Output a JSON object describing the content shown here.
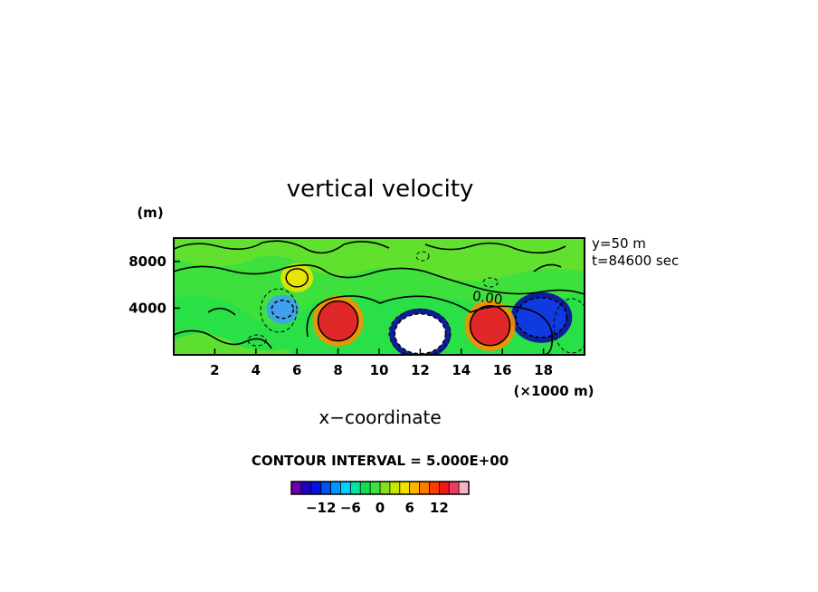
{
  "chart_data": {
    "type": "heatmap",
    "title": "vertical velocity",
    "xlabel": "x−coordinate",
    "x_unit_label": "(×1000 m)",
    "y_unit_label": "(m)",
    "x_ticks": [
      {
        "value": 2,
        "label": "2"
      },
      {
        "value": 4,
        "label": "4"
      },
      {
        "value": 6,
        "label": "6"
      },
      {
        "value": 8,
        "label": "8"
      },
      {
        "value": 10,
        "label": "10"
      },
      {
        "value": 12,
        "label": "12"
      },
      {
        "value": 14,
        "label": "14"
      },
      {
        "value": 16,
        "label": "16"
      },
      {
        "value": 18,
        "label": "18"
      }
    ],
    "y_ticks": [
      {
        "value": 4000,
        "label": "4000"
      },
      {
        "value": 8000,
        "label": "8000"
      }
    ],
    "xlim": [
      0,
      20
    ],
    "ylim": [
      0,
      10000
    ],
    "info_lines": [
      "y=50 m",
      "t=84600 sec"
    ],
    "contour_label": "0.00",
    "contour_interval": "CONTOUR INTERVAL = 5.000E+00",
    "background_color": "#3ee03e",
    "features": [
      {
        "x": 12.0,
        "z": 1800,
        "value": -20,
        "color": "#ffffff",
        "edge": "#0a0aa6"
      },
      {
        "x": 17.9,
        "z": 3200,
        "value": -10,
        "color": "#0f3ae0",
        "edge": "#0a0aa6"
      },
      {
        "x": 5.3,
        "z": 3900,
        "value": -5,
        "color": "#3fa0f0",
        "edge": "#3fa0f0"
      },
      {
        "x": 8.0,
        "z": 2900,
        "value": 14,
        "color": "#e02828",
        "edge": "#ff8c00"
      },
      {
        "x": 15.4,
        "z": 2500,
        "value": 16,
        "color": "#e02828",
        "edge": "#ff8c00"
      },
      {
        "x": 6.0,
        "z": 6600,
        "value": 8,
        "color": "#e6e600",
        "edge": "#e6e600"
      }
    ],
    "colorbar": {
      "ticks": [
        {
          "value": -12,
          "label": "−12"
        },
        {
          "value": -6,
          "label": "−6"
        },
        {
          "value": 0,
          "label": "0"
        },
        {
          "value": 6,
          "label": "6"
        },
        {
          "value": 12,
          "label": "12"
        }
      ],
      "range": [
        -18,
        18
      ],
      "colors": [
        "#6a00a8",
        "#1a00c8",
        "#0014e0",
        "#0050f0",
        "#0096ff",
        "#00d2ff",
        "#00e6a0",
        "#10e050",
        "#3ee03e",
        "#80e020",
        "#c8e600",
        "#f0e000",
        "#ffb400",
        "#ff7800",
        "#ff3c00",
        "#f01818",
        "#e83c64",
        "#f4b4c0"
      ]
    }
  }
}
